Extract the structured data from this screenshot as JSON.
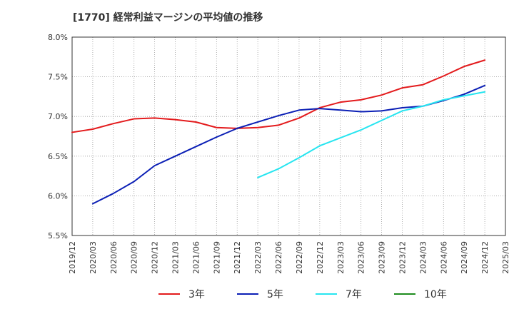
{
  "chart_data": {
    "type": "line",
    "title": "[1770]  経常利益マージンの平均値の推移",
    "xlabel": "",
    "ylabel": "",
    "ylim": [
      5.5,
      8.0
    ],
    "yticks": [
      "5.5%",
      "6.0%",
      "6.5%",
      "7.0%",
      "7.5%",
      "8.0%"
    ],
    "yticks_values": [
      5.5,
      6.0,
      6.5,
      7.0,
      7.5,
      8.0
    ],
    "x_categories": [
      "2019/12",
      "2020/03",
      "2020/06",
      "2020/09",
      "2020/12",
      "2021/03",
      "2021/06",
      "2021/09",
      "2021/12",
      "2022/03",
      "2022/06",
      "2022/09",
      "2022/12",
      "2023/03",
      "2023/06",
      "2023/09",
      "2023/12",
      "2024/03",
      "2024/06",
      "2024/09",
      "2024/12",
      "2025/03"
    ],
    "grid": true,
    "legend_position": "bottom",
    "series": [
      {
        "name": "3年",
        "color": "#e31a1c",
        "values": [
          6.8,
          6.84,
          6.91,
          6.97,
          6.98,
          6.96,
          6.93,
          6.86,
          6.85,
          6.86,
          6.89,
          6.98,
          7.11,
          7.18,
          7.21,
          7.27,
          7.36,
          7.4,
          7.51,
          7.63,
          7.71,
          null
        ]
      },
      {
        "name": "5年",
        "color": "#0b1fb5",
        "values": [
          null,
          5.9,
          6.03,
          6.18,
          6.38,
          6.5,
          6.62,
          6.74,
          6.85,
          6.93,
          7.01,
          7.08,
          7.1,
          7.08,
          7.06,
          7.07,
          7.11,
          7.13,
          7.2,
          7.28,
          7.39,
          null
        ]
      },
      {
        "name": "7年",
        "color": "#27e5f0",
        "values": [
          null,
          null,
          null,
          null,
          null,
          null,
          null,
          null,
          null,
          6.23,
          6.34,
          6.48,
          6.63,
          6.73,
          6.83,
          6.95,
          7.07,
          7.13,
          7.21,
          7.26,
          7.31,
          null
        ]
      },
      {
        "name": "10年",
        "color": "#1e8c1e",
        "values": [
          null,
          null,
          null,
          null,
          null,
          null,
          null,
          null,
          null,
          null,
          null,
          null,
          null,
          null,
          null,
          null,
          null,
          null,
          null,
          null,
          null,
          null
        ]
      }
    ]
  }
}
